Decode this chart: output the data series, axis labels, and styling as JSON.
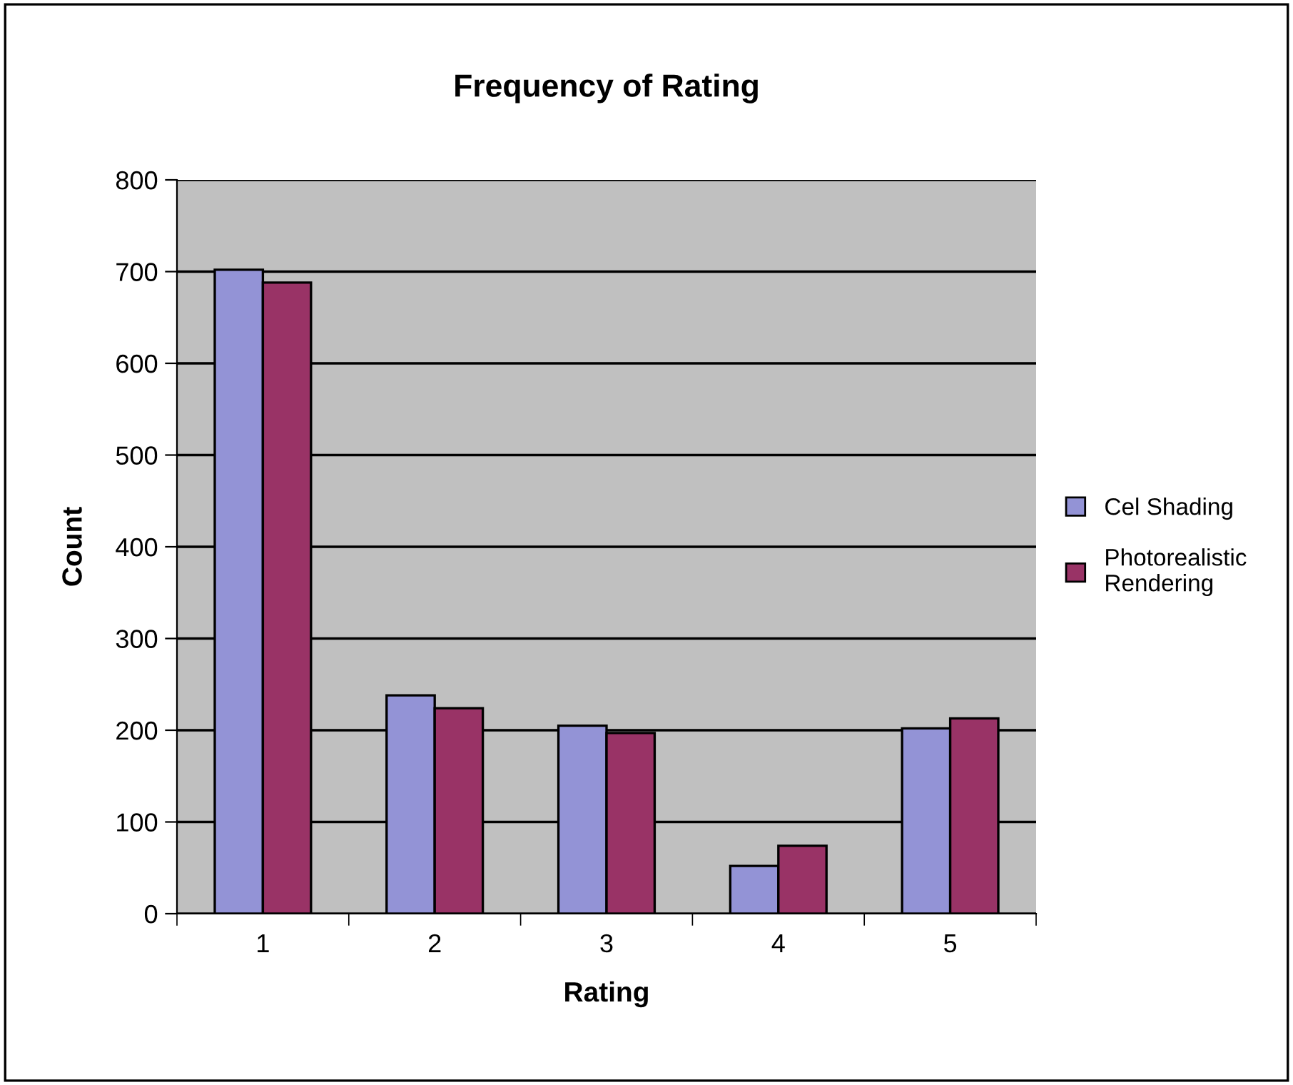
{
  "chart_data": {
    "type": "bar",
    "title": "Frequency of Rating",
    "xlabel": "Rating",
    "ylabel": "Count",
    "categories": [
      "1",
      "2",
      "3",
      "4",
      "5"
    ],
    "series": [
      {
        "name": "Cel Shading",
        "color": "#9393d6",
        "values": [
          702,
          238,
          205,
          52,
          202
        ]
      },
      {
        "name": "Photorealistic Rendering",
        "color": "#993366",
        "values": [
          688,
          224,
          197,
          74,
          213
        ]
      }
    ],
    "ylim": [
      0,
      800
    ],
    "yticks": [
      0,
      100,
      200,
      300,
      400,
      500,
      600,
      700,
      800
    ],
    "grid": "y",
    "legend": "right"
  }
}
